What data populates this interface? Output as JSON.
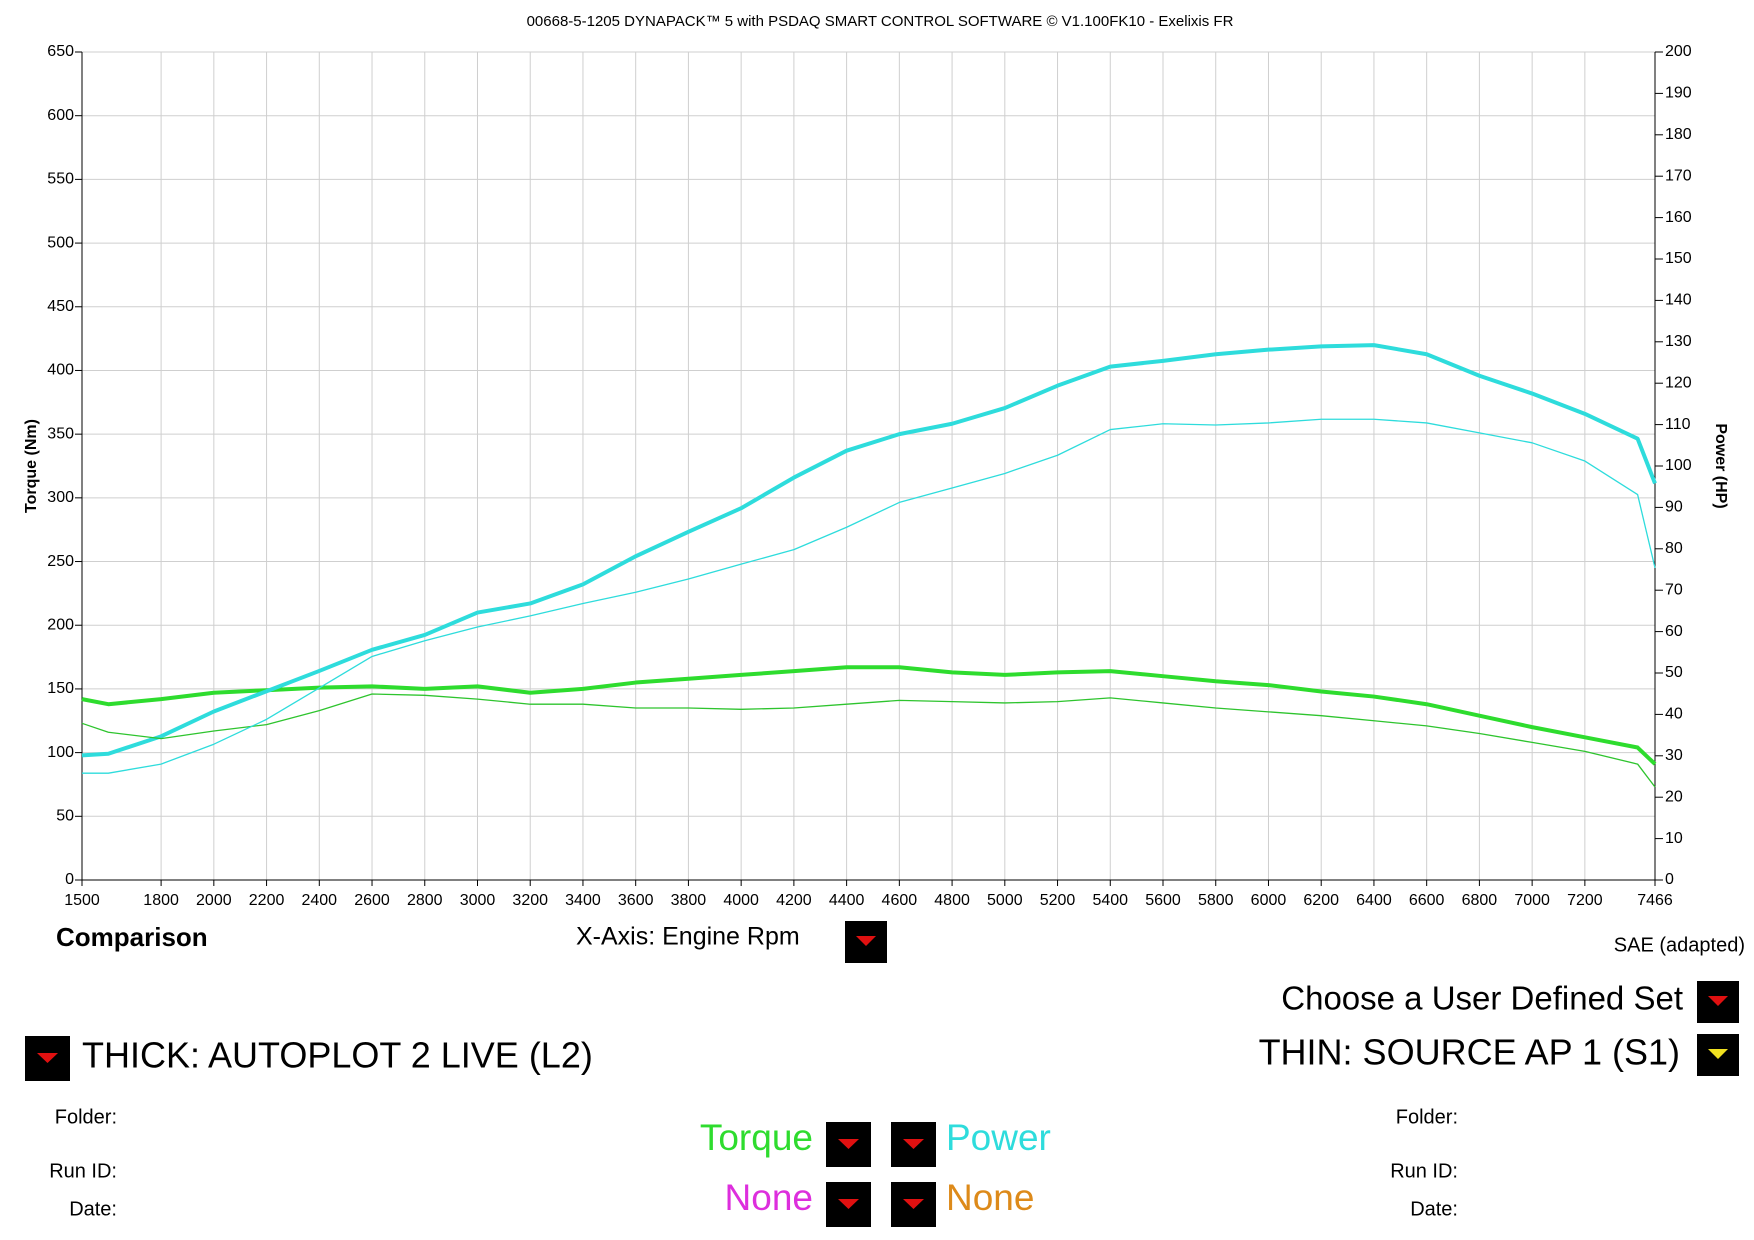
{
  "chart_data": {
    "type": "line",
    "title": "00668-5-1205 DYNAPACK™ 5 with PSDAQ SMART CONTROL SOFTWARE © V1.100FK10 - Exelixis FR",
    "y_label": "Torque (Nm)",
    "y2_label": "Power (HP)",
    "x": [
      1500,
      1600,
      1800,
      2000,
      2200,
      2400,
      2600,
      2800,
      3000,
      3200,
      3400,
      3600,
      3800,
      4000,
      4200,
      4400,
      4600,
      4800,
      5000,
      5200,
      5400,
      5600,
      5800,
      6000,
      6200,
      6400,
      6600,
      6800,
      7000,
      7200,
      7400,
      7466
    ],
    "xlim": [
      1500,
      7466
    ],
    "xticks": [
      1500,
      1800,
      2000,
      2200,
      2400,
      2600,
      2800,
      3000,
      3200,
      3400,
      3600,
      3800,
      4000,
      4200,
      4400,
      4600,
      4800,
      5000,
      5200,
      5400,
      5600,
      5800,
      6000,
      6200,
      6400,
      6600,
      6800,
      7000,
      7200,
      7466
    ],
    "ylim": [
      0,
      650
    ],
    "yticks": [
      0,
      50,
      100,
      150,
      200,
      250,
      300,
      350,
      400,
      450,
      500,
      550,
      600,
      650
    ],
    "y2lim": [
      0,
      200
    ],
    "y2ticks": [
      0,
      10,
      20,
      30,
      40,
      50,
      60,
      70,
      80,
      90,
      100,
      110,
      120,
      130,
      140,
      150,
      160,
      170,
      180,
      190,
      200
    ],
    "grid": true,
    "series": [
      {
        "color": "#2edc2e",
        "line_width": "thick",
        "values": [
          142,
          138,
          142,
          147,
          149,
          151,
          152,
          150,
          152,
          147,
          150,
          155,
          158,
          161,
          164,
          167,
          167,
          163,
          161,
          163,
          164,
          160,
          156,
          153,
          148,
          144,
          138,
          129,
          120,
          112,
          104,
          91
        ]
      },
      {
        "color": "#2edcdc",
        "line_width": "thick",
        "axis": "y2",
        "values": [
          30.1,
          30.5,
          34.7,
          40.7,
          45.6,
          50.5,
          55.6,
          59.2,
          64.6,
          66.8,
          71.4,
          78.2,
          84.1,
          89.8,
          97.2,
          103.7,
          107.7,
          110.2,
          114,
          119.4,
          124,
          125.4,
          127,
          128.1,
          128.9,
          129.2,
          127,
          121.8,
          117.5,
          112.6,
          106.6,
          95.8
        ]
      },
      {
        "color": "#2ec42e",
        "line_width": "thin",
        "values": [
          123,
          116,
          111,
          117,
          122,
          133,
          146,
          145,
          142,
          138,
          138,
          135,
          135,
          134,
          135,
          138,
          141,
          140,
          139,
          140,
          143,
          139,
          135,
          132,
          129,
          125,
          121,
          115,
          108,
          101,
          91,
          73
        ]
      },
      {
        "color": "#2edcdc",
        "line_width": "thin",
        "axis": "y2",
        "values": [
          25.8,
          25.8,
          28,
          32.8,
          38.8,
          46.4,
          54,
          57.8,
          61.1,
          63.8,
          66.8,
          69.5,
          72.7,
          76.3,
          79.8,
          85.2,
          91.2,
          94.7,
          98.2,
          102.6,
          108.8,
          110.2,
          109.9,
          110.4,
          111.3,
          111.3,
          110.4,
          108,
          105.6,
          101.2,
          93.1,
          75.4
        ]
      }
    ]
  },
  "controls": {
    "comparison": "Comparison",
    "x_axis": "X-Axis: Engine Rpm",
    "standard": "SAE (adapted)",
    "user_set": "Choose a User Defined Set",
    "thick": "THICK: AUTOPLOT 2 LIVE (L2)",
    "thin": "THIN: SOURCE AP 1 (S1)",
    "left": {
      "folder": "Folder:",
      "run_id": "Run ID:",
      "date": "Date:"
    },
    "right": {
      "folder": "Folder:",
      "run_id": "Run ID:",
      "date": "Date:"
    },
    "channels": [
      {
        "left": "Torque",
        "right": "Power"
      },
      {
        "left": "None",
        "right": "None"
      }
    ]
  }
}
